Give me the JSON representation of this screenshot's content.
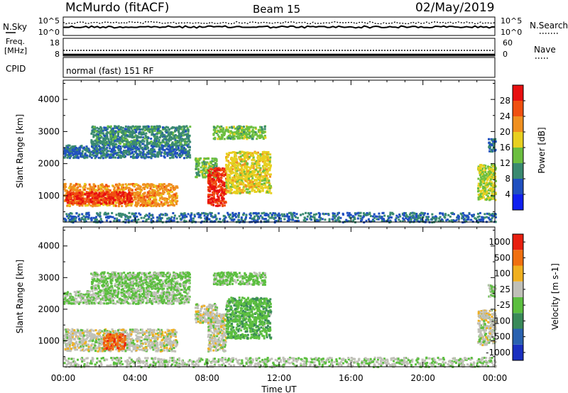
{
  "header": {
    "station": "McMurdo (fitACF)",
    "beam": "Beam 15",
    "date": "02/May/2019"
  },
  "status_panels": {
    "nsky_label": "N.Sky",
    "nsky_ticks": [
      "10^5",
      "10^0"
    ],
    "nsearch_label": "N.Search",
    "nsearch_ticks": [
      "10^5",
      "10^0"
    ],
    "freq_label_line1": "Freq.",
    "freq_label_line2": "[MHz]",
    "freq_ticks": [
      "18",
      "8"
    ],
    "nave_label": "Nave",
    "nave_ticks": [
      "60",
      "0"
    ],
    "cpid_label": "CPID",
    "cpid_text": "normal (fast) 151 RF"
  },
  "chart_data": [
    {
      "type": "heatmap",
      "title": "",
      "xlabel": "Time UT",
      "ylabel": "Slant Range [km]",
      "x_ticks": [
        "00:00",
        "04:00",
        "08:00",
        "12:00",
        "16:00",
        "20:00",
        "00:00"
      ],
      "xlim_hours": [
        0,
        24
      ],
      "ylim_km": [
        180,
        4600
      ],
      "y_ticks": [
        1000,
        2000,
        3000,
        4000
      ],
      "colorbar": {
        "label": "Power [dB]",
        "tick_labels": [
          "4",
          "8",
          "12",
          "16",
          "20",
          "24",
          "28"
        ],
        "range": [
          0,
          32
        ],
        "colors": [
          "#1020f0",
          "#2050c0",
          "#3a8a70",
          "#6cbf40",
          "#e8d020",
          "#f09020",
          "#f05010",
          "#e81010"
        ]
      },
      "regions": [
        {
          "t0": 0.0,
          "t1": 6.3,
          "r0": 700,
          "r1": 1400,
          "value": 22
        },
        {
          "t0": 0.1,
          "t1": 3.8,
          "r0": 780,
          "r1": 1150,
          "value": 28
        },
        {
          "t0": 0.0,
          "t1": 7.0,
          "r0": 2200,
          "r1": 2600,
          "value": 8
        },
        {
          "t0": 1.5,
          "t1": 7.0,
          "r0": 2600,
          "r1": 3200,
          "value": 10
        },
        {
          "t0": 7.3,
          "t1": 8.5,
          "r0": 1600,
          "r1": 2200,
          "value": 14
        },
        {
          "t0": 8.0,
          "t1": 9.0,
          "r0": 700,
          "r1": 1900,
          "value": 28
        },
        {
          "t0": 9.0,
          "t1": 11.5,
          "r0": 1100,
          "r1": 2400,
          "value": 18
        },
        {
          "t0": 8.3,
          "t1": 11.2,
          "r0": 2800,
          "r1": 3200,
          "value": 14
        },
        {
          "t0": 0.0,
          "t1": 24.0,
          "r0": 200,
          "r1": 500,
          "value": 8
        },
        {
          "t0": 23.0,
          "t1": 24.0,
          "r0": 900,
          "r1": 2000,
          "value": 16
        },
        {
          "t0": 23.6,
          "t1": 24.0,
          "r0": 2400,
          "r1": 2800,
          "value": 8
        }
      ]
    },
    {
      "type": "heatmap",
      "title": "",
      "xlabel": "Time UT",
      "ylabel": "Slant Range [km]",
      "x_ticks": [
        "00:00",
        "04:00",
        "08:00",
        "12:00",
        "16:00",
        "20:00",
        "00:00"
      ],
      "xlim_hours": [
        0,
        24
      ],
      "ylim_km": [
        180,
        4600
      ],
      "y_ticks": [
        1000,
        2000,
        3000,
        4000
      ],
      "colorbar": {
        "label": "Velocity [m s-1]",
        "tick_labels": [
          "1000",
          "500",
          "100",
          "25",
          "-25",
          "-100",
          "-500",
          "-1000"
        ],
        "range": [
          -1200,
          1200
        ],
        "colors": [
          "#1a30c0",
          "#2a62b0",
          "#3a8a5a",
          "#5cbf40",
          "#c0c0b8",
          "#f0b020",
          "#f07010",
          "#e82010"
        ]
      },
      "regions": [
        {
          "t0": 0.0,
          "t1": 6.3,
          "r0": 700,
          "r1": 1400,
          "value": 150
        },
        {
          "t0": 2.2,
          "t1": 3.4,
          "r0": 750,
          "r1": 1250,
          "value": 800
        },
        {
          "t0": 0.0,
          "t1": 7.0,
          "r0": 2200,
          "r1": 2600,
          "value": 0
        },
        {
          "t0": 1.5,
          "t1": 7.0,
          "r0": 2600,
          "r1": 3200,
          "value": -80
        },
        {
          "t0": 7.3,
          "t1": 8.5,
          "r0": 1600,
          "r1": 2200,
          "value": 150
        },
        {
          "t0": 8.0,
          "t1": 9.0,
          "r0": 700,
          "r1": 1900,
          "value": 150
        },
        {
          "t0": 9.0,
          "t1": 11.5,
          "r0": 1100,
          "r1": 2400,
          "value": -200
        },
        {
          "t0": 8.3,
          "t1": 11.2,
          "r0": 2800,
          "r1": 3200,
          "value": -80
        },
        {
          "t0": 0.0,
          "t1": 24.0,
          "r0": 200,
          "r1": 500,
          "value": 60
        },
        {
          "t0": 23.0,
          "t1": 24.0,
          "r0": 900,
          "r1": 2000,
          "value": 150
        },
        {
          "t0": 23.6,
          "t1": 24.0,
          "r0": 2400,
          "r1": 2800,
          "value": 0
        }
      ]
    }
  ]
}
